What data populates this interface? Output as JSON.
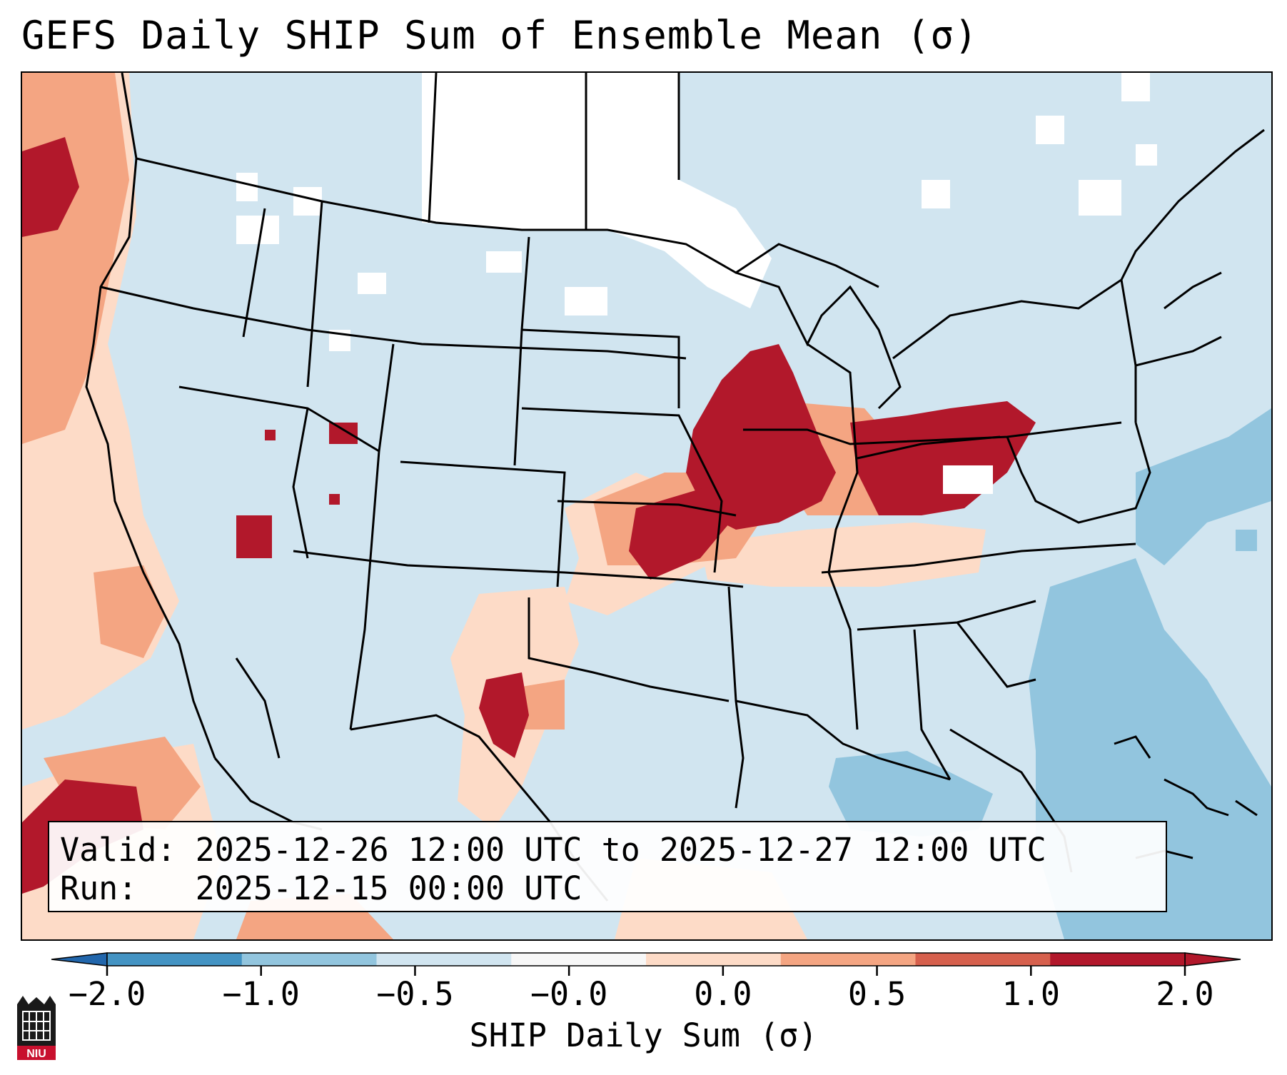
{
  "title": "GEFS Daily SHIP Sum of Ensemble Mean (σ)",
  "info": {
    "valid_label": "Valid:",
    "valid_value": "2025-12-26 12:00 UTC to 2025-12-27 12:00 UTC",
    "run_label": "Run:",
    "run_value": "2025-12-15 00:00 UTC"
  },
  "colorbar": {
    "label": "SHIP Daily Sum (σ)",
    "ticks": [
      "−2.0",
      "−1.0",
      "−0.5",
      "−0.0",
      "0.0",
      "0.5",
      "1.0",
      "2.0"
    ],
    "bin_colors": [
      "#4393c3",
      "#92c5de",
      "#d1e5f0",
      "#f7f7f7",
      "#fddbc7",
      "#f4a582",
      "#d6604d",
      "#b2182b"
    ],
    "extend_min_color": "#2166ac",
    "extend_max_color": "#b2182b"
  },
  "logo": {
    "text": "NIU",
    "icon": "university-building-icon"
  },
  "map": {
    "background_color": "#d1e5f0",
    "anomaly_regions": [
      "Midwest (Iowa, Illinois, Indiana, Ohio): strong positive",
      "Kansas / Missouri / Oklahoma: moderate positive",
      "West Texas: strong positive",
      "Pacific coast / offshore: positive",
      "Off Southeast coast and Gulf: negative",
      "Northern Plains / Canada: near zero"
    ]
  }
}
